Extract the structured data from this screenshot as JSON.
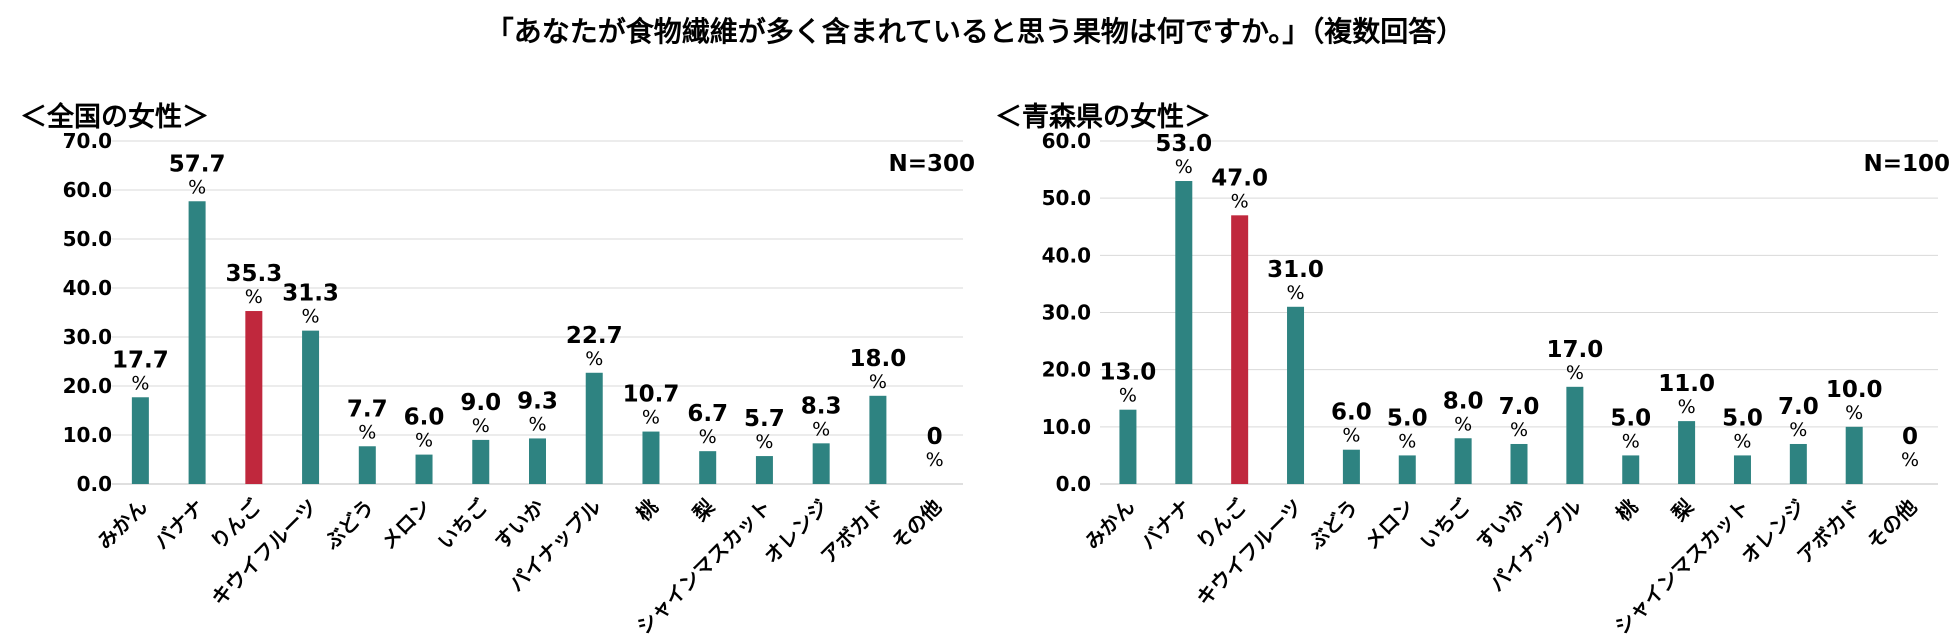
{
  "title": "「あなたが食物繊維が多く含まれていると思う果物は何ですか。」（複数回答）",
  "chart_data": [
    {
      "type": "bar",
      "title": "＜全国の女性＞",
      "note": "N=300",
      "categories": [
        "みかん",
        "バナナ",
        "りんご",
        "キウイフルーツ",
        "ぶどう",
        "メロン",
        "いちご",
        "すいか",
        "パイナップル",
        "桃",
        "梨",
        "シャインマスカット",
        "オレンジ",
        "アボカド",
        "その他"
      ],
      "values": [
        17.7,
        57.7,
        35.3,
        31.3,
        7.7,
        6.0,
        9.0,
        9.3,
        22.7,
        10.7,
        6.7,
        5.7,
        8.3,
        18.0,
        0
      ],
      "value_labels": [
        "17.7",
        "57.7",
        "35.3",
        "31.3",
        "7.7",
        "6.0",
        "9.0",
        "9.3",
        "22.7",
        "10.7",
        "6.7",
        "5.7",
        "8.3",
        "18.0",
        "0"
      ],
      "unit": "%",
      "ylim": [
        0,
        70
      ],
      "yticks": [
        "0.0",
        "10.0",
        "20.0",
        "30.0",
        "40.0",
        "50.0",
        "60.0",
        "70.0"
      ],
      "grid": true,
      "highlight_category": "りんご",
      "bar_color": "#2e8381",
      "highlight_color": "#c0283d"
    },
    {
      "type": "bar",
      "title": "＜青森県の女性＞",
      "note": "N=100",
      "categories": [
        "みかん",
        "バナナ",
        "りんご",
        "キウイフルーツ",
        "ぶどう",
        "メロン",
        "いちご",
        "すいか",
        "パイナップル",
        "桃",
        "梨",
        "シャインマスカット",
        "オレンジ",
        "アボカド",
        "その他"
      ],
      "values": [
        13.0,
        53.0,
        47.0,
        31.0,
        6.0,
        5.0,
        8.0,
        7.0,
        17.0,
        5.0,
        11.0,
        5.0,
        7.0,
        10.0,
        0
      ],
      "value_labels": [
        "13.0",
        "53.0",
        "47.0",
        "31.0",
        "6.0",
        "5.0",
        "8.0",
        "7.0",
        "17.0",
        "5.0",
        "11.0",
        "5.0",
        "7.0",
        "10.0",
        "0"
      ],
      "unit": "%",
      "ylim": [
        0,
        60
      ],
      "yticks": [
        "0.0",
        "10.0",
        "20.0",
        "30.0",
        "40.0",
        "50.0",
        "60.0"
      ],
      "grid": true,
      "highlight_category": "りんご",
      "bar_color": "#2e8381",
      "highlight_color": "#c0283d"
    }
  ]
}
